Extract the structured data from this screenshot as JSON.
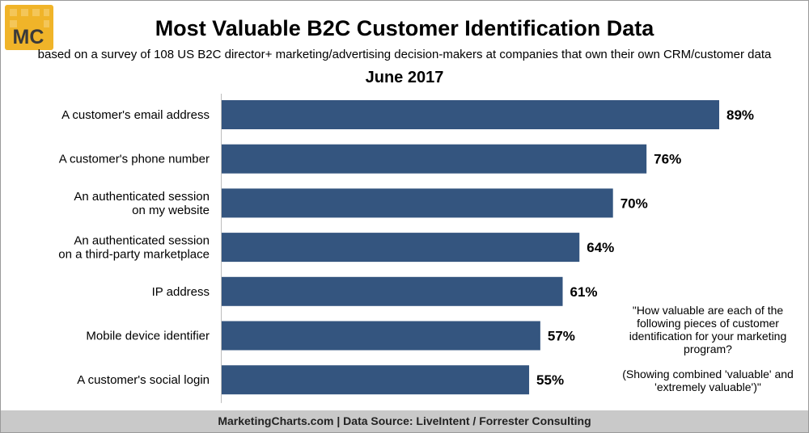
{
  "logo": {
    "text": "MC",
    "colors": {
      "background": "#f0b429",
      "grid": "#f7d27a",
      "text": "#3a3a3a"
    }
  },
  "header": {
    "title": "Most Valuable B2C Customer Identification Data",
    "subtitle": "based on a survey of 108 US B2C director+ marketing/advertising decision-makers at companies that own their own CRM/customer data",
    "date": "June 2017"
  },
  "note": {
    "question": "\"How valuable are each of the following pieces of customer identification for your marketing program?",
    "clarification": "(Showing combined 'valuable' and 'extremely valuable')\""
  },
  "footer": {
    "text": "MarketingCharts.com | Data Source: LiveIntent / Forrester Consulting"
  },
  "chart_data": {
    "type": "bar",
    "orientation": "horizontal",
    "title": "Most Valuable B2C Customer Identification Data",
    "subtitle": "June 2017",
    "categories": [
      [
        "A customer's email address"
      ],
      [
        "A customer's phone number"
      ],
      [
        "An authenticated session",
        "on my website"
      ],
      [
        "An authenticated session",
        "on a third-party marketplace"
      ],
      [
        "IP address"
      ],
      [
        "Mobile device identifier"
      ],
      [
        "A customer's social login"
      ]
    ],
    "values": [
      89,
      76,
      70,
      64,
      61,
      57,
      55
    ],
    "value_labels": [
      "89%",
      "76%",
      "70%",
      "64%",
      "61%",
      "57%",
      "55%"
    ],
    "unit": "%",
    "xlim": [
      0,
      100
    ],
    "bar_color": "#34557f",
    "grid": false,
    "legend": "none"
  }
}
